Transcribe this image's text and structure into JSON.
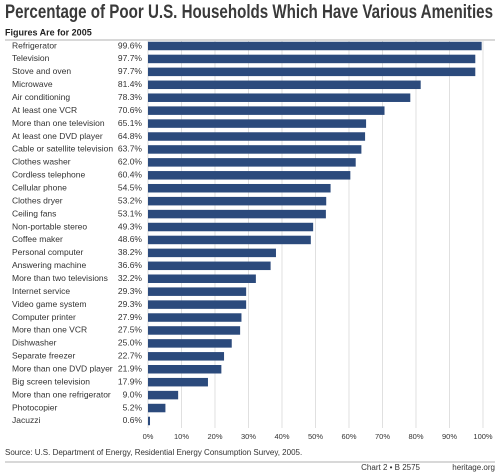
{
  "chart_data": {
    "type": "barh",
    "title": "Percentage of Poor U.S. Households Which Have Various Amenities",
    "subtitle": "Figures Are for 2005",
    "source": "Source: U.S. Department of Energy, Residential Energy Consumption Survey, 2005.",
    "chart_id": "Chart 2 • B 2575",
    "site": "heritage.org",
    "color": "#2b4a7c",
    "grid": true,
    "categories": [
      "Refrigerator",
      "Television",
      "Stove and oven",
      "Microwave",
      "Air conditioning",
      "At least one VCR",
      "More than one television",
      "At least one DVD player",
      "Cable or satellite television",
      "Clothes washer",
      "Cordless telephone",
      "Cellular phone",
      "Clothes dryer",
      "Ceiling fans",
      "Non-portable stereo",
      "Coffee maker",
      "Personal computer",
      "Answering machine",
      "More than two televisions",
      "Internet service",
      "Video game system",
      "Computer printer",
      "More than one VCR",
      "Dishwasher",
      "Separate freezer",
      "More than one DVD player",
      "Big screen television",
      "More than one refrigerator",
      "Photocopier",
      "Jacuzzi"
    ],
    "values": [
      99.6,
      97.7,
      97.7,
      81.4,
      78.3,
      70.6,
      65.1,
      64.8,
      63.7,
      62.0,
      60.4,
      54.5,
      53.2,
      53.1,
      49.3,
      48.6,
      38.2,
      36.6,
      32.2,
      29.3,
      29.3,
      27.9,
      27.5,
      25.0,
      22.7,
      21.9,
      17.9,
      9.0,
      5.2,
      0.6
    ],
    "value_labels": [
      "99.6%",
      "97.7%",
      "97.7%",
      "81.4%",
      "78.3%",
      "70.6%",
      "65.1%",
      "64.8%",
      "63.7%",
      "62.0%",
      "60.4%",
      "54.5%",
      "53.2%",
      "53.1%",
      "49.3%",
      "48.6%",
      "38.2%",
      "36.6%",
      "32.2%",
      "29.3%",
      "29.3%",
      "27.9%",
      "27.5%",
      "25.0%",
      "22.7%",
      "21.9%",
      "17.9%",
      "9.0%",
      "5.2%",
      "0.6%"
    ],
    "xlim": [
      0,
      100
    ],
    "xticks": [
      {
        "value": 0,
        "label": "0%"
      },
      {
        "value": 10,
        "label": "10%"
      },
      {
        "value": 20,
        "label": "20%"
      },
      {
        "value": 30,
        "label": "30%"
      },
      {
        "value": 40,
        "label": "40%"
      },
      {
        "value": 50,
        "label": "50%"
      },
      {
        "value": 60,
        "label": "60%"
      },
      {
        "value": 70,
        "label": "70%"
      },
      {
        "value": 80,
        "label": "80%"
      },
      {
        "value": 90,
        "label": "90%"
      },
      {
        "value": 100,
        "label": "100%"
      }
    ]
  }
}
